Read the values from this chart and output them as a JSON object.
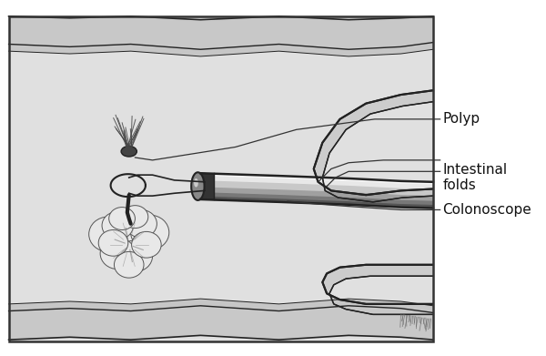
{
  "bg_color": "#ffffff",
  "border_color": "#333333",
  "lumen_color": "#e0e0e0",
  "wall_color": "#c8c8c8",
  "wall_dark_color": "#a0a0a0",
  "scope_highlight": "#f8f8f8",
  "scope_mid": "#d0d0d0",
  "scope_shadow": "#888888",
  "scope_dark": "#555555",
  "polyp_color": "#e8e8e8",
  "polyp_edge": "#555555",
  "line_color": "#222222",
  "annot_color": "#333333",
  "label_polyp": "Polyp",
  "label_folds": "Intestinal\nfolds",
  "label_colonoscope": "Colonoscope",
  "label_fontsize": 11
}
